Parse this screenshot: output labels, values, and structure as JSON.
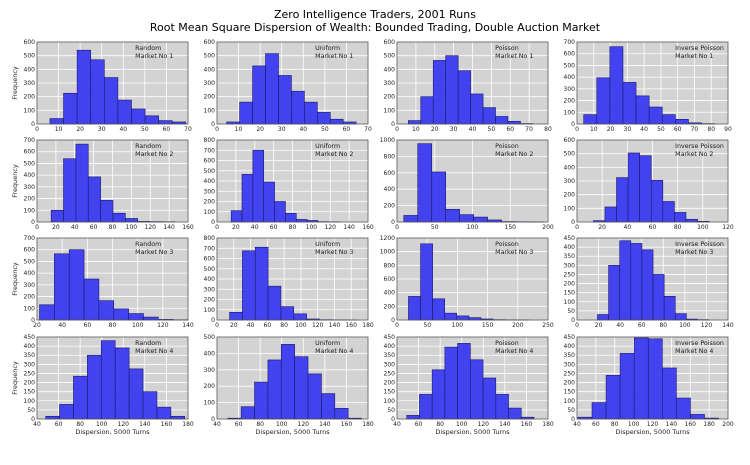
{
  "chart_data": {
    "type": "bar",
    "title": "Zero Intelligence Traders, 2001 Runs",
    "subtitle": "Root Mean Square Dispersion of Wealth:  Bounded Trading, Double Auction Market",
    "xlabel": "Dispersion, 5000 Turns",
    "ylabel": "Frequency",
    "grid": true,
    "colors": {
      "bar": "#3a3af0",
      "bar_edge": "#1a1a6a",
      "axes_bg": "#d3d3d3",
      "grid": "#ffffff"
    },
    "panels": [
      {
        "trader": "Random",
        "market": "Market No 1",
        "xlim": [
          0,
          70
        ],
        "xstep": 10,
        "ylim": [
          0,
          600
        ],
        "ystep": 100,
        "bin_start": 6,
        "bin_width": 6.3,
        "values": [
          40,
          225,
          540,
          470,
          340,
          175,
          110,
          60,
          25,
          15
        ]
      },
      {
        "trader": "Uniform",
        "market": "Market No 1",
        "xlim": [
          0,
          70
        ],
        "xstep": 10,
        "ylim": [
          0,
          600
        ],
        "ystep": 100,
        "bin_start": 4.5,
        "bin_width": 6,
        "values": [
          15,
          160,
          425,
          515,
          355,
          240,
          160,
          85,
          35,
          15
        ]
      },
      {
        "trader": "Poisson",
        "market": "Market No 1",
        "xlim": [
          0,
          80
        ],
        "xstep": 10,
        "ylim": [
          0,
          600
        ],
        "ystep": 100,
        "bin_start": 6,
        "bin_width": 6.6,
        "values": [
          25,
          200,
          465,
          500,
          390,
          220,
          120,
          55,
          20,
          3
        ]
      },
      {
        "trader": "Inverse Poisson",
        "market": "Market No 1",
        "xlim": [
          0,
          90
        ],
        "xstep": 10,
        "ylim": [
          0,
          700
        ],
        "ystep": 100,
        "bin_start": 4,
        "bin_width": 7.8,
        "values": [
          80,
          395,
          660,
          355,
          240,
          145,
          80,
          40,
          10,
          3
        ]
      },
      {
        "trader": "Random",
        "market": "Market No 2",
        "xlim": [
          0,
          160
        ],
        "xstep": 20,
        "ylim": [
          0,
          700
        ],
        "ystep": 100,
        "bin_start": 15,
        "bin_width": 13.1,
        "values": [
          100,
          540,
          665,
          385,
          185,
          75,
          30,
          5,
          3,
          2
        ]
      },
      {
        "trader": "Uniform",
        "market": "Market No 2",
        "xlim": [
          0,
          160
        ],
        "xstep": 20,
        "ylim": [
          0,
          800
        ],
        "ystep": 100,
        "bin_start": 15,
        "bin_width": 11.5,
        "values": [
          110,
          465,
          700,
          390,
          200,
          85,
          25,
          15,
          3,
          2
        ]
      },
      {
        "trader": "Poisson",
        "market": "Market No 2",
        "xlim": [
          0,
          200
        ],
        "xstep": 50,
        "ylim": [
          0,
          1000
        ],
        "ystep": 200,
        "bin_start": 9,
        "bin_width": 18.5,
        "values": [
          80,
          955,
          610,
          155,
          90,
          60,
          25,
          5,
          3,
          2
        ]
      },
      {
        "trader": "Inverse Poisson",
        "market": "Market No 2",
        "xlim": [
          0,
          120
        ],
        "xstep": 20,
        "ylim": [
          0,
          600
        ],
        "ystep": 100,
        "bin_start": 13,
        "bin_width": 9.2,
        "values": [
          10,
          110,
          325,
          505,
          485,
          305,
          150,
          70,
          20,
          5
        ]
      },
      {
        "trader": "Random",
        "market": "Market No 3",
        "xlim": [
          20,
          140
        ],
        "xstep": 20,
        "ylim": [
          0,
          700
        ],
        "ystep": 100,
        "bin_start": 22,
        "bin_width": 11.8,
        "values": [
          130,
          565,
          600,
          350,
          165,
          95,
          55,
          25,
          5,
          2
        ]
      },
      {
        "trader": "Uniform",
        "market": "Market No 3",
        "xlim": [
          0,
          180
        ],
        "xstep": 20,
        "ylim": [
          0,
          800
        ],
        "ystep": 100,
        "bin_start": 15,
        "bin_width": 15.3,
        "values": [
          75,
          675,
          710,
          330,
          130,
          60,
          10,
          3,
          2,
          1
        ]
      },
      {
        "trader": "Poisson",
        "market": "Market No 3",
        "xlim": [
          0,
          250
        ],
        "xstep": 50,
        "ylim": [
          0,
          1200
        ],
        "ystep": 200,
        "bin_start": 19,
        "bin_width": 20,
        "values": [
          345,
          1115,
          310,
          100,
          60,
          35,
          15,
          5,
          3,
          1
        ]
      },
      {
        "trader": "Inverse Poisson",
        "market": "Market No 3",
        "xlim": [
          0,
          140
        ],
        "xstep": 20,
        "ylim": [
          0,
          450
        ],
        "ystep": 50,
        "bin_start": 19,
        "bin_width": 10.3,
        "values": [
          30,
          300,
          435,
          420,
          385,
          250,
          130,
          35,
          5,
          2
        ]
      },
      {
        "trader": "Random",
        "market": "Market No 4",
        "xlim": [
          40,
          180
        ],
        "xstep": 20,
        "ylim": [
          0,
          450
        ],
        "ystep": 50,
        "bin_start": 48,
        "bin_width": 12.9,
        "values": [
          15,
          80,
          235,
          350,
          430,
          390,
          275,
          150,
          65,
          15
        ]
      },
      {
        "trader": "Uniform",
        "market": "Market No 4",
        "xlim": [
          40,
          180
        ],
        "xstep": 20,
        "ylim": [
          0,
          500
        ],
        "ystep": 100,
        "bin_start": 50,
        "bin_width": 12.4,
        "values": [
          5,
          75,
          225,
          360,
          455,
          380,
          275,
          155,
          65,
          5
        ]
      },
      {
        "trader": "Poisson",
        "market": "Market No 4",
        "xlim": [
          40,
          180
        ],
        "xstep": 20,
        "ylim": [
          0,
          450
        ],
        "ystep": 50,
        "bin_start": 49,
        "bin_width": 11.8,
        "values": [
          20,
          135,
          270,
          395,
          415,
          325,
          225,
          135,
          60,
          10
        ]
      },
      {
        "trader": "Inverse Poisson",
        "market": "Market No 4",
        "xlim": [
          40,
          200
        ],
        "xstep": 20,
        "ylim": [
          0,
          450
        ],
        "ystep": 50,
        "bin_start": 41,
        "bin_width": 14.9,
        "values": [
          10,
          90,
          240,
          360,
          445,
          440,
          280,
          115,
          25,
          5
        ]
      }
    ]
  }
}
